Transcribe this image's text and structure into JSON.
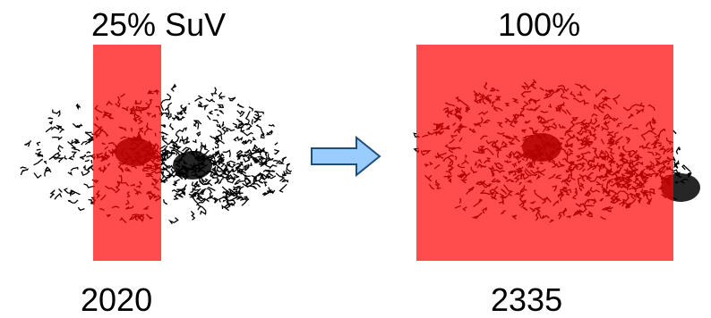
{
  "left_panel": {
    "caption": "25% SuV",
    "year": "2020",
    "coverage_fraction": 0.25
  },
  "right_panel": {
    "caption": "100%",
    "year": "2335",
    "coverage_fraction": 1.0
  },
  "arrow": {
    "icon": "right-arrow-icon",
    "fill_color": "#99ccff",
    "stroke_color": "#1f4e79"
  },
  "colors": {
    "overlay": "#ff0000",
    "map": "#000000"
  }
}
